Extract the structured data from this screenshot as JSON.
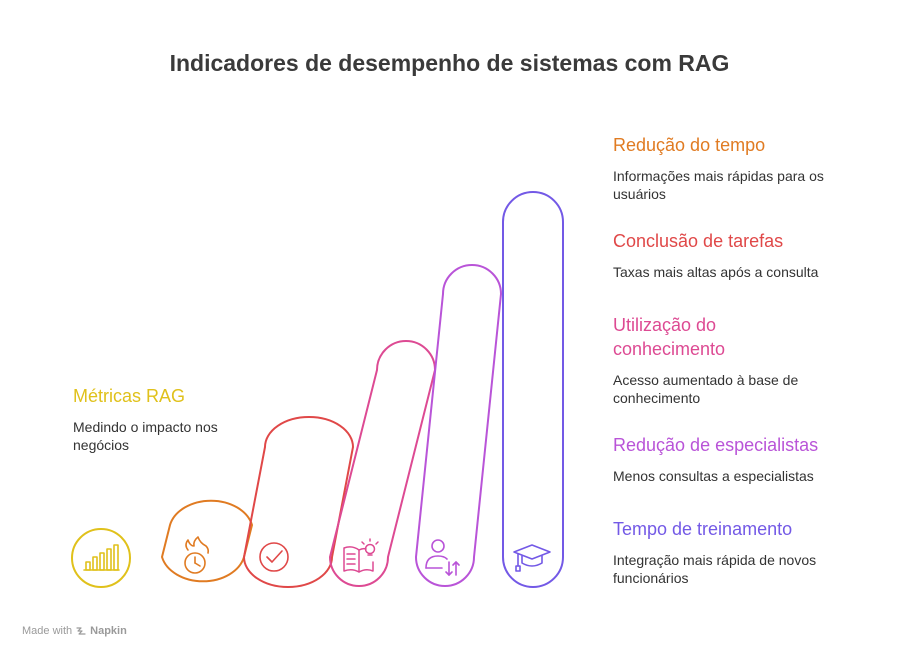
{
  "title": "Indicadores de desempenho de sistemas com RAG",
  "left_item": {
    "heading": "Métricas RAG",
    "description": "Medindo o impacto nos negócios",
    "color": "#E0C11B",
    "icon": "bar-chart-icon"
  },
  "items": [
    {
      "heading": "Redução do tempo",
      "description": "Informações mais rápidas para os usuários",
      "color": "#E07B22",
      "icon": "timer-icon"
    },
    {
      "heading": "Conclusão de tarefas",
      "description": "Taxas mais altas após a consulta",
      "color": "#E04848",
      "icon": "check-circle-icon"
    },
    {
      "heading": "Utilização do conhecimento",
      "description": "Acesso aumentado à base de conhecimento",
      "color": "#DD4A93",
      "icon": "book-lightbulb-icon"
    },
    {
      "heading": "Redução de especialistas",
      "description": "Menos consultas a especialistas",
      "color": "#B954D8",
      "icon": "user-arrows-icon"
    },
    {
      "heading": "Tempo de treinamento",
      "description": "Integração mais rápida de novos funcionários",
      "color": "#7359E6",
      "icon": "graduation-cap-icon"
    }
  ],
  "footer": {
    "prefix": "Made with",
    "brand": "Napkin"
  }
}
